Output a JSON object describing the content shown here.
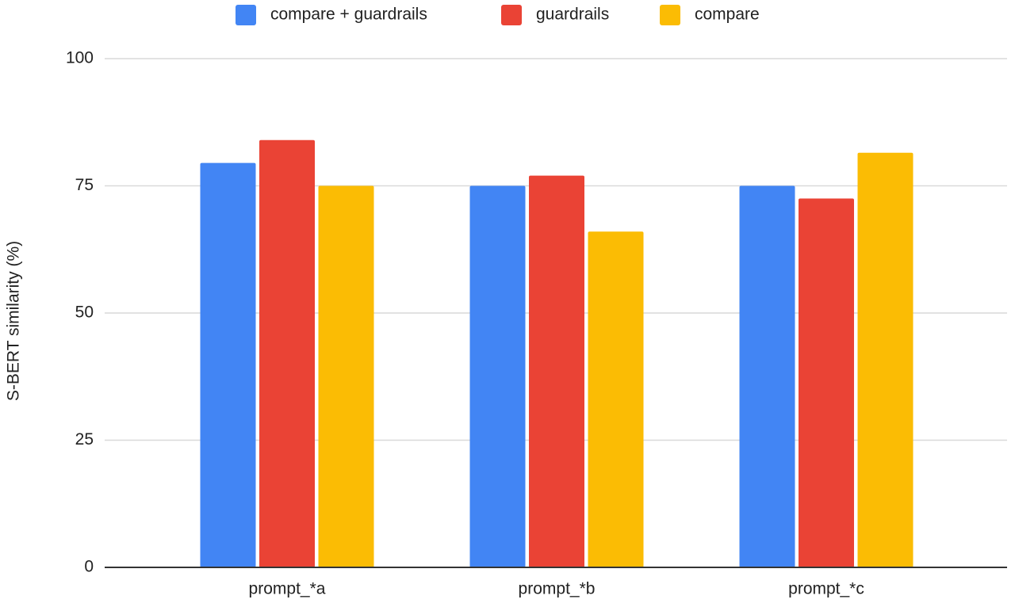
{
  "chart_data": {
    "type": "bar",
    "y_label": "S-BERT similarity (%)",
    "categories": [
      "prompt_*a",
      "prompt_*b",
      "prompt_*c"
    ],
    "series": [
      {
        "name": "compare + guardrails",
        "color": "#4285f4",
        "values": [
          79.5,
          75,
          75
        ]
      },
      {
        "name": "guardrails",
        "color": "#ea4335",
        "values": [
          84,
          77,
          72.5
        ]
      },
      {
        "name": "compare",
        "color": "#fbbc04",
        "values": [
          75,
          66,
          81.5
        ]
      }
    ],
    "ylim": [
      0,
      100
    ],
    "yticks": [
      0,
      25,
      50,
      75,
      100
    ],
    "grid": true
  }
}
